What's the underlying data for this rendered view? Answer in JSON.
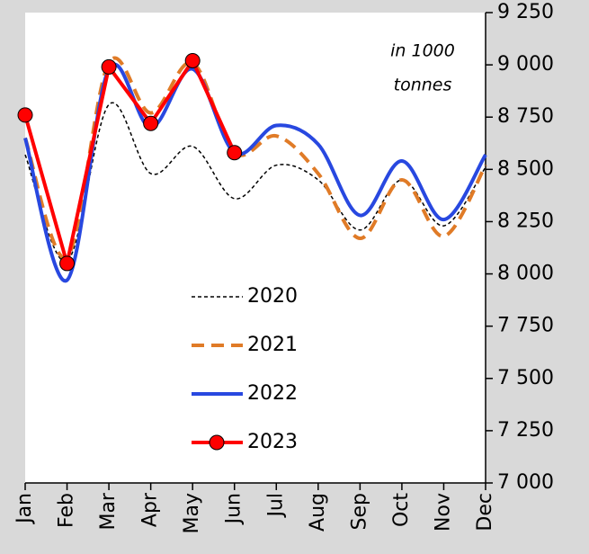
{
  "chart_data": {
    "type": "line",
    "categories": [
      "Jan",
      "Feb",
      "Mar",
      "Apr",
      "May",
      "Jun",
      "Jul",
      "Aug",
      "Sep",
      "Oct",
      "Nov",
      "Dec"
    ],
    "annotation": [
      "in 1000",
      "tonnes"
    ],
    "ylim": [
      7000,
      9250
    ],
    "yticks": [
      {
        "value": 7000,
        "label": "7 000"
      },
      {
        "value": 7250,
        "label": "7 250"
      },
      {
        "value": 7500,
        "label": "7 500"
      },
      {
        "value": 7750,
        "label": "7 750"
      },
      {
        "value": 8000,
        "label": "8 000"
      },
      {
        "value": 8250,
        "label": "8 250"
      },
      {
        "value": 8500,
        "label": "8 500"
      },
      {
        "value": 8750,
        "label": "8 750"
      },
      {
        "value": 9000,
        "label": "9 000"
      },
      {
        "value": 9250,
        "label": "9 250"
      }
    ],
    "legend": "center",
    "series": [
      {
        "name": "2020",
        "color": "#000000",
        "dash": "4 3",
        "width": 1.5,
        "smooth": true,
        "marker": false,
        "values": [
          8570,
          8060,
          8810,
          8480,
          8610,
          8360,
          8520,
          8450,
          8210,
          8450,
          8230,
          8510
        ]
      },
      {
        "name": "2021",
        "color": "#e07b27",
        "dash": "14 8",
        "width": 4,
        "smooth": true,
        "marker": false,
        "values": [
          8650,
          8080,
          9010,
          8770,
          9010,
          8580,
          8660,
          8480,
          8170,
          8450,
          8180,
          8520
        ]
      },
      {
        "name": "2022",
        "color": "#2848e0",
        "dash": "",
        "width": 4,
        "smooth": true,
        "marker": false,
        "values": [
          8650,
          7970,
          8980,
          8700,
          8980,
          8580,
          8710,
          8620,
          8280,
          8540,
          8260,
          8570
        ]
      },
      {
        "name": "2023",
        "color": "#ff0000",
        "dash": "",
        "width": 4,
        "smooth": false,
        "marker": true,
        "values": [
          8760,
          8050,
          8990,
          8720,
          9020,
          8580,
          null,
          null,
          null,
          null,
          null,
          null
        ]
      }
    ]
  }
}
